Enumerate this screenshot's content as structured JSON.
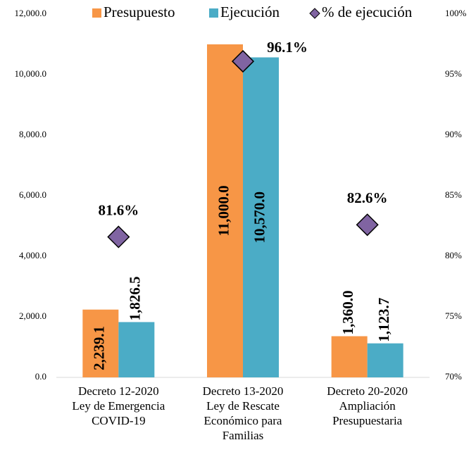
{
  "chart_data": {
    "type": "bar",
    "categories": [
      [
        "Decreto 12-2020",
        "Ley de Emergencia",
        "COVID-19"
      ],
      [
        "Decreto 13-2020",
        "Ley de Rescate",
        "Económico para",
        "Familias"
      ],
      [
        "Decreto 20-2020",
        "Ampliación",
        "Presupuestaria"
      ]
    ],
    "series": [
      {
        "name": "Presupuesto",
        "color": "#f79646",
        "values": [
          2239.1,
          11000.0,
          1360.0
        ],
        "value_labels": [
          "2,239.1",
          "11,000.0",
          "1,360.0"
        ]
      },
      {
        "name": "Ejecución",
        "color": "#4bacc6",
        "values": [
          1826.5,
          10570.0,
          1123.7
        ],
        "value_labels": [
          "1,826.5",
          "10,570.0",
          "1,123.7"
        ]
      },
      {
        "name": "% de ejecución",
        "color": "#8064a2",
        "type": "scatter",
        "axis": "y2",
        "values": [
          81.6,
          96.1,
          82.6
        ],
        "value_labels": [
          "81.6%",
          "96.1%",
          "82.6%"
        ]
      }
    ],
    "ylim": [
      0,
      12000
    ],
    "yticks": [
      {
        "value": 0,
        "label": "0.0"
      },
      {
        "value": 2000,
        "label": "2,000.0"
      },
      {
        "value": 4000,
        "label": "4,000.0"
      },
      {
        "value": 6000,
        "label": "6,000.0"
      },
      {
        "value": 8000,
        "label": "8,000.0"
      },
      {
        "value": 10000,
        "label": "10,000.0"
      },
      {
        "value": 12000,
        "label": "12,000.0"
      }
    ],
    "y2lim": [
      70,
      100
    ],
    "y2ticks": [
      {
        "value": 70,
        "label": "70%"
      },
      {
        "value": 75,
        "label": "75%"
      },
      {
        "value": 80,
        "label": "80%"
      },
      {
        "value": 85,
        "label": "85%"
      },
      {
        "value": 90,
        "label": "90%"
      },
      {
        "value": 95,
        "label": "95%"
      },
      {
        "value": 100,
        "label": "100%"
      }
    ],
    "legend": "top"
  }
}
